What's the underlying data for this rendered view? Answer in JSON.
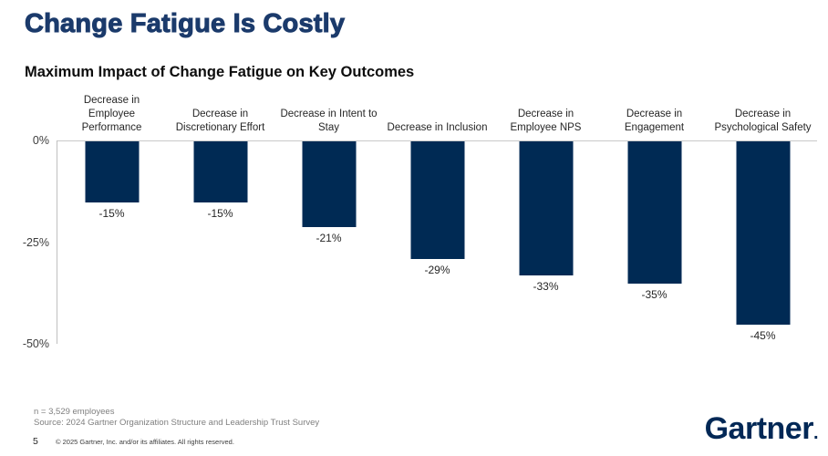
{
  "header": {
    "title": "Change Fatigue Is Costly",
    "subtitle": "Maximum Impact of Change Fatigue on Key Outcomes"
  },
  "chart_data": {
    "type": "bar",
    "title": "Maximum Impact of Change Fatigue on Key Outcomes",
    "categories": [
      "Decrease in Employee Performance",
      "Decrease in Discretionary Effort",
      "Decrease in Intent to Stay",
      "Decrease in Inclusion",
      "Decrease in Employee NPS",
      "Decrease in Engagement",
      "Decrease in Psychological Safety"
    ],
    "category_lines": [
      [
        "Decrease in",
        "Employee",
        "Performance"
      ],
      [
        "Decrease in",
        "Discretionary Effort"
      ],
      [
        "Decrease in Intent to",
        "Stay"
      ],
      [
        "Decrease in Inclusion"
      ],
      [
        "Decrease in",
        "Employee NPS"
      ],
      [
        "Decrease in",
        "Engagement"
      ],
      [
        "Decrease in",
        "Psychological Safety"
      ]
    ],
    "values": [
      -15,
      -15,
      -21,
      -29,
      -33,
      -35,
      -45
    ],
    "data_labels": [
      "-15%",
      "-15%",
      "-21%",
      "-29%",
      "-33%",
      "-35%",
      "-45%"
    ],
    "xlabel": "",
    "ylabel": "",
    "ylim": [
      -50,
      0
    ],
    "yticks": [
      {
        "label": "0%",
        "value": 0
      },
      {
        "label": "-25%",
        "value": -25
      },
      {
        "label": "-50%",
        "value": -50
      }
    ],
    "grid": false,
    "legend": "none",
    "bar_color": "#002a54"
  },
  "colors": {
    "title_navy": "#1b3a6b",
    "bar_navy": "#002a54",
    "logo_navy": "#002856",
    "axis_gray": "#bfbfbf",
    "footnote_gray": "#7f7f7f"
  },
  "footer": {
    "note_line1": "n = 3,529 employees",
    "note_line2": "Source: 2024 Gartner Organization Structure and Leadership Trust Survey",
    "page_number": "5",
    "copyright": "© 2025 Gartner, Inc. and/or its affiliates. All rights reserved.",
    "logo_text": "Gartner",
    "logo_mark": "."
  }
}
